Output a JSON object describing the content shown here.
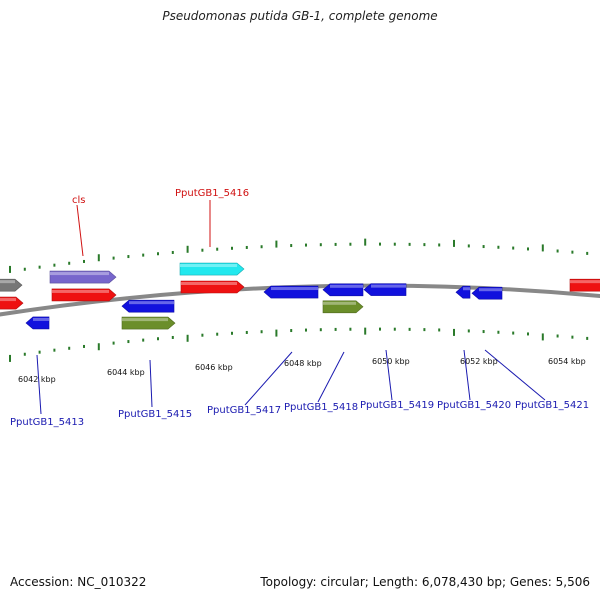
{
  "title": "Pseudomonas putida GB-1, complete genome",
  "footer": {
    "accession": "Accession: NC_010322",
    "summary": "Topology: circular; Length: 6,078,430 bp; Genes: 5,506"
  },
  "scale_labels": [
    "6042 kbp",
    "6044 kbp",
    "6046 kbp",
    "6048 kbp",
    "6050 kbp",
    "6052 kbp",
    "6054 kbp"
  ],
  "gene_labels_forward": [
    "cls",
    "PputGB1_5416"
  ],
  "gene_labels_reverse": [
    "PputGB1_5413",
    "PputGB1_5415",
    "PputGB1_5417",
    "PputGB1_5418",
    "PputGB1_5419",
    "PputGB1_5420",
    "PputGB1_5421"
  ],
  "colors": {
    "backbone": "#888888",
    "tick": "#2a7a2a",
    "cds_forward": "#ee1111",
    "cds_reverse": "#1111dd",
    "gene_purple": "#7766cc",
    "gene_cyan": "#22e8ee",
    "gene_gray": "#777777",
    "gene_olive": "#6b8e2a",
    "label_red": "#d01010",
    "label_blue": "#1a1ab0"
  }
}
